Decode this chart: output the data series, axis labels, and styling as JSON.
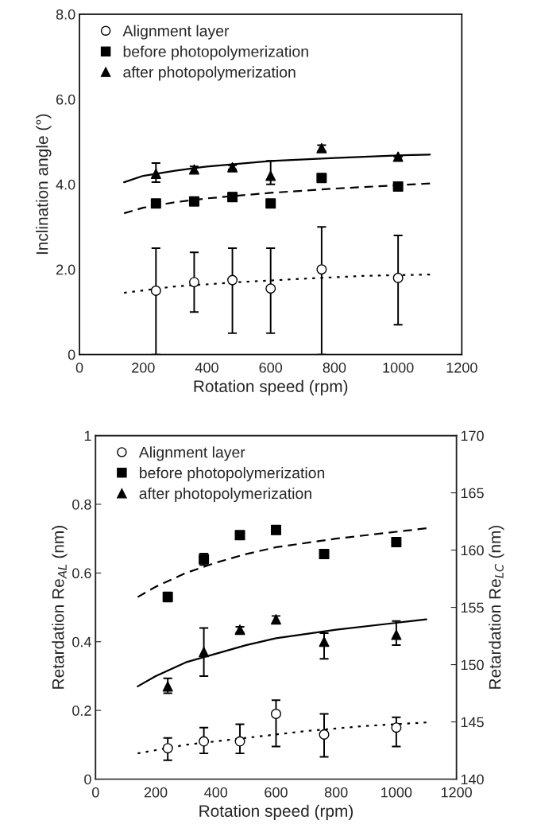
{
  "chart_data": [
    {
      "type": "scatter",
      "xlabel": "Rotation speed (rpm)",
      "ylabel": "Inclination angle (°)",
      "xlim": [
        0,
        1200
      ],
      "xticks": [
        0,
        200,
        400,
        600,
        800,
        1000,
        1200
      ],
      "ylim": [
        0,
        8
      ],
      "yticks": [
        {
          "value": 0,
          "label": "0"
        },
        {
          "value": 2,
          "label": "2.0"
        },
        {
          "value": 4,
          "label": "4.0"
        },
        {
          "value": 6,
          "label": "6.0"
        },
        {
          "value": 8,
          "label": "8.0"
        }
      ],
      "grid": false,
      "legend": "top left",
      "series": [
        {
          "name": "Alignment layer",
          "marker": "circle",
          "color": "#000000",
          "x": [
            240,
            360,
            480,
            600,
            760,
            1000
          ],
          "values": [
            1.5,
            1.7,
            1.75,
            1.55,
            2.0,
            1.8
          ],
          "errors": [
            [
              0,
              2.5
            ],
            [
              1.0,
              2.4
            ],
            [
              0.5,
              2.5
            ],
            [
              0.5,
              2.5
            ],
            [
              0,
              3.0
            ],
            [
              0.7,
              2.8
            ]
          ]
        },
        {
          "name": "before photopolymerization",
          "marker": "square",
          "color": "#000000",
          "x": [
            240,
            360,
            480,
            600,
            760,
            1000
          ],
          "values": [
            3.55,
            3.6,
            3.7,
            3.55,
            4.15,
            3.95
          ],
          "errors": [
            0.05,
            0.05,
            0.1,
            0.05,
            0.05,
            0.1
          ]
        },
        {
          "name": "after photopolymerization",
          "marker": "triangle",
          "color": "#000000",
          "x": [
            240,
            360,
            480,
            600,
            760,
            1000
          ],
          "values": [
            4.25,
            4.35,
            4.4,
            4.2,
            4.85,
            4.65
          ],
          "errors": [
            [
              4.05,
              4.5
            ],
            0.07,
            0.05,
            [
              4.0,
              4.55
            ],
            0.07,
            null
          ]
        },
        {
          "type": "line",
          "line_style": "dotted",
          "color": "#000000",
          "x": [
            140,
            300,
            500,
            700,
            900,
            1100
          ],
          "values": [
            1.45,
            1.6,
            1.7,
            1.78,
            1.85,
            1.88
          ]
        },
        {
          "type": "line",
          "line_style": "dashed",
          "color": "#000000",
          "x": [
            140,
            200,
            300,
            400,
            600,
            800,
            1000,
            1100
          ],
          "values": [
            3.32,
            3.45,
            3.58,
            3.67,
            3.8,
            3.9,
            3.98,
            4.02
          ]
        },
        {
          "type": "line",
          "line_style": "solid",
          "color": "#000000",
          "x": [
            140,
            200,
            300,
            400,
            600,
            800,
            1000,
            1100
          ],
          "values": [
            4.05,
            4.2,
            4.32,
            4.42,
            4.55,
            4.62,
            4.68,
            4.7
          ]
        }
      ]
    },
    {
      "type": "scatter",
      "xlabel": "Rotation speed (rpm)",
      "ylabel": "Retardation Re$_{AL}$ (nm)",
      "y2label": "Retardation Re$_{LC}$ (nm)",
      "xlim": [
        0,
        1200
      ],
      "xticks": [
        0,
        200,
        400,
        600,
        800,
        1000,
        1200
      ],
      "ylim": [
        0,
        1
      ],
      "yticks": [
        0,
        0.2,
        0.4,
        0.6,
        0.8,
        1
      ],
      "y2lim": [
        140,
        170
      ],
      "y2ticks": [
        140,
        145,
        150,
        155,
        160,
        165,
        170
      ],
      "grid": false,
      "legend": "top left",
      "series": [
        {
          "name": "Alignment layer",
          "marker": "circle",
          "color": "#000000",
          "x": [
            240,
            360,
            480,
            600,
            760,
            1000
          ],
          "values": [
            0.09,
            0.11,
            0.11,
            0.19,
            0.13,
            0.15
          ],
          "errors": [
            [
              0.055,
              0.12
            ],
            [
              0.075,
              0.15
            ],
            [
              0.075,
              0.16
            ],
            [
              0.095,
              0.23
            ],
            [
              0.065,
              0.19
            ],
            [
              0.095,
              0.18
            ]
          ]
        },
        {
          "name": "before photopolymerization",
          "marker": "square",
          "color": "#000000",
          "axis": "y2",
          "x": [
            240,
            360,
            480,
            600,
            760,
            1000
          ],
          "values": [
            155.9,
            159.2,
            161.3,
            161.75,
            159.65,
            160.7
          ],
          "errors": [
            0.4,
            0.5,
            0.2,
            0.15,
            null,
            null
          ]
        },
        {
          "name": "after photopolymerization",
          "marker": "triangle",
          "color": "#000000",
          "axis": "y2",
          "x": [
            240,
            360,
            480,
            600,
            760,
            1000
          ],
          "values": [
            148.1,
            151.1,
            153.05,
            153.95,
            152.0,
            152.6
          ],
          "errors": [
            [
              147.5,
              148.8
            ],
            [
              149.0,
              153.2
            ],
            0.25,
            0.3,
            [
              150.5,
              152.75
            ],
            [
              151.7,
              153.8
            ]
          ]
        },
        {
          "type": "line",
          "line_style": "dotted",
          "color": "#000000",
          "x": [
            140,
            300,
            500,
            700,
            900,
            1100
          ],
          "values": [
            0.075,
            0.1,
            0.12,
            0.14,
            0.155,
            0.165
          ]
        },
        {
          "type": "line",
          "line_style": "dashed",
          "color": "#000000",
          "axis": "y2",
          "x": [
            140,
            200,
            250,
            300,
            400,
            500,
            600,
            800,
            1000,
            1100
          ],
          "values": [
            155.9,
            156.8,
            157.4,
            158.0,
            158.9,
            159.65,
            160.25,
            161.0,
            161.6,
            161.9
          ]
        },
        {
          "type": "line",
          "line_style": "solid",
          "color": "#000000",
          "axis": "y2",
          "x": [
            140,
            200,
            300,
            400,
            500,
            600,
            800,
            1000,
            1100
          ],
          "values": [
            148.1,
            149.0,
            150.2,
            150.95,
            151.7,
            152.3,
            153.05,
            153.65,
            153.95
          ]
        }
      ]
    }
  ]
}
